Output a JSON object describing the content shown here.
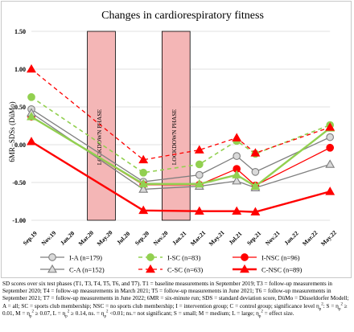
{
  "chart_data": {
    "type": "line",
    "title": "Changes in cardiorespiratory fitness",
    "ylabel": "6MR−SDSs (DüMo)",
    "xlabel": "",
    "ylim": [
      -1.0,
      1.5
    ],
    "y_ticks": [
      "1.50",
      "1.00",
      "0.50",
      "0.00",
      "-0.50",
      "-1.00"
    ],
    "y_tick_values": [
      1.5,
      1.0,
      0.5,
      0.0,
      -0.5,
      -1.0
    ],
    "x_ticks": [
      "Sep.19",
      "Nov.19",
      "Jan.20",
      "Mar.20",
      "May.20",
      "Jul.20",
      "Sep.20",
      "Nov.20",
      "Jan.21",
      "Mar.21",
      "May.21",
      "Jul.21",
      "Sep.21",
      "Nov.21",
      "Jan.22",
      "Mar.22",
      "May.22"
    ],
    "x_tick_index": [
      0,
      2,
      4,
      6,
      8,
      10,
      12,
      14,
      16,
      18,
      20,
      22,
      24,
      26,
      28,
      30,
      32
    ],
    "lockdowns": [
      {
        "label": "LOCKDOWN PHASE",
        "start": 6,
        "end": 9
      },
      {
        "label": "LOCKDOWN PHASE",
        "start": 14,
        "end": 17
      }
    ],
    "series": [
      {
        "name": "I-A (n=179)",
        "color": "#7f7f7f",
        "dash": "solid",
        "marker": "circle",
        "width": 1.3,
        "x": [
          0,
          12,
          18,
          22,
          24,
          32
        ],
        "values": [
          0.47,
          -0.49,
          -0.4,
          -0.15,
          -0.36,
          0.1
        ]
      },
      {
        "name": "I-SC (n=83)",
        "color": "#92d050",
        "dash": "dashed",
        "marker": "circle",
        "width": 1.6,
        "x": [
          0,
          12,
          18,
          22,
          24,
          32
        ],
        "values": [
          0.63,
          -0.37,
          -0.26,
          0.05,
          -0.12,
          0.26
        ]
      },
      {
        "name": "I-NSC (n=96)",
        "color": "#ff0000",
        "dash": "solid",
        "marker": "circle",
        "width": 1.3,
        "x": [
          0,
          12,
          18,
          22,
          24,
          32
        ],
        "values": [
          0.37,
          -0.53,
          -0.53,
          -0.32,
          -0.54,
          -0.04
        ]
      },
      {
        "name": "C-A (n=152)",
        "color": "#7f7f7f",
        "dash": "solid",
        "marker": "triangle",
        "width": 1.3,
        "x": [
          0,
          12,
          18,
          22,
          24,
          32
        ],
        "values": [
          0.42,
          -0.59,
          -0.55,
          -0.48,
          -0.57,
          -0.26
        ]
      },
      {
        "name": "I-SC (n=83)",
        "color": "#92d050",
        "dash": "solid",
        "marker": "triangle",
        "width": 2.4,
        "x": [
          0,
          12,
          18,
          22,
          24,
          32
        ],
        "values": [
          0.37,
          -0.52,
          -0.52,
          -0.4,
          -0.55,
          0.22
        ]
      },
      {
        "name": "C-SC (n=63)",
        "color": "#ff0000",
        "dash": "dashed",
        "marker": "triangle",
        "width": 1.3,
        "x": [
          0,
          12,
          18,
          22,
          24,
          32
        ],
        "values": [
          1.0,
          -0.2,
          -0.07,
          0.09,
          -0.11,
          0.23
        ]
      },
      {
        "name": "C-NSC (n=89)",
        "color": "#ff0000",
        "dash": "solid",
        "marker": "triangle",
        "width": 2.4,
        "x": [
          0,
          12,
          18,
          22,
          24,
          32
        ],
        "values": [
          0.04,
          -0.87,
          -0.88,
          -0.88,
          -0.89,
          -0.62
        ]
      }
    ],
    "legend_order": [
      0,
      1,
      2,
      3,
      5,
      6
    ],
    "legend_position": "bottom"
  },
  "caption": {
    "line1": "SD scores over six test phases (T1, T3, T4, T5, T6, and T7). T1 = baseline measurements in September 2019; T3 = follow-up measurements in September 2020; T4 = follow-up measurements in March 2021; T5 = follow-up measurements in June 2021; T6 = follow-up measurements in September 2021; T7 = follow-up measurements in June 2022; 6MR = six-minute run; SDS = standard deviation score, DüMo = Düsseldorfer Modell; A = all; SC = sports club membership; NSC = no sports club membership; I = intervention group; C = control group; significance level η",
    "p2": "p",
    "sup2": "2",
    "line2": ": S = η",
    "line3": " ≥ 0.01, M = η",
    "line4": " ≥ 0.07, L = η",
    "line5": " ≥ 0.14, ns. = η",
    "line6": " <0.01; ns.= not significant; S = small; M = medium; L = large; η",
    "line7": " = effect size."
  }
}
